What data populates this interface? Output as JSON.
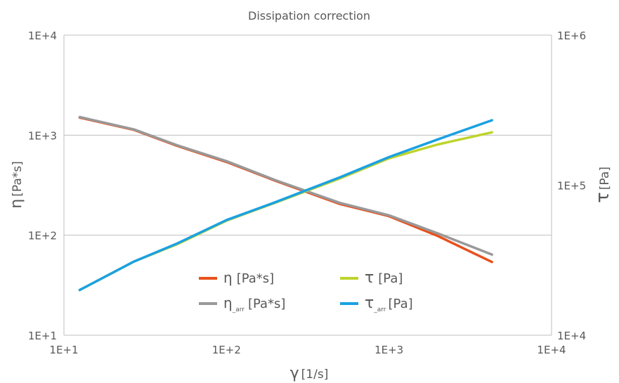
{
  "chart_data": {
    "type": "line",
    "title": "Dissipation correction",
    "xlabel": {
      "symbol": "γ",
      "unit": "[1/s]"
    },
    "ylabel_left": {
      "symbol": "η",
      "unit": "[Pa*s]"
    },
    "ylabel_right": {
      "symbol": "τ",
      "unit": "[Pa]"
    },
    "x_scale": "log",
    "y_left_scale": "log",
    "y_right_scale": "log",
    "xlim": [
      10,
      10000
    ],
    "ylim_left": [
      10,
      10000
    ],
    "ylim_right": [
      10000,
      1000000
    ],
    "x_ticks": [
      "1E+1",
      "1E+2",
      "1E+3",
      "1E+4"
    ],
    "y_left_ticks": [
      "1E+1",
      "1E+2",
      "1E+3",
      "1E+4"
    ],
    "y_right_ticks": [
      "1E+4",
      "1E+5",
      "1E+6"
    ],
    "grid": "horizontal",
    "legend_position": "bottom-center",
    "series": [
      {
        "name": "η [Pa*s]",
        "symbol": "η",
        "sub": "",
        "unit": "[Pa*s]",
        "axis": "left",
        "color": "#E8501C",
        "x": [
          12.5,
          27,
          50,
          100,
          200,
          500,
          1000,
          2000,
          4300
        ],
        "y": [
          1500,
          1130,
          780,
          540,
          350,
          205,
          155,
          98,
          54
        ]
      },
      {
        "name": "η_arr [Pa*s]",
        "symbol": "η",
        "sub": "_arr",
        "unit": "[Pa*s]",
        "axis": "left",
        "color": "#999999",
        "x": [
          12.5,
          27,
          50,
          100,
          200,
          500,
          1000,
          2000,
          4300
        ],
        "y": [
          1520,
          1140,
          790,
          550,
          355,
          210,
          158,
          104,
          64
        ]
      },
      {
        "name": "τ [Pa]",
        "symbol": "τ",
        "sub": "",
        "unit": "[Pa]",
        "axis": "right",
        "color": "#BFD42B",
        "x": [
          12.5,
          27,
          50,
          100,
          200,
          500,
          1000,
          2000,
          4300
        ],
        "y": [
          20000,
          31000,
          40500,
          58000,
          76500,
          111000,
          151000,
          187000,
          225000
        ]
      },
      {
        "name": "τ_arr [Pa]",
        "symbol": "τ",
        "sub": "_arr",
        "unit": "[Pa]",
        "axis": "right",
        "color": "#1BA1E2",
        "x": [
          12.5,
          27,
          50,
          100,
          200,
          500,
          1000,
          2000,
          4300
        ],
        "y": [
          20000,
          31000,
          41000,
          58500,
          77000,
          113000,
          154000,
          202000,
          271000
        ]
      }
    ]
  }
}
